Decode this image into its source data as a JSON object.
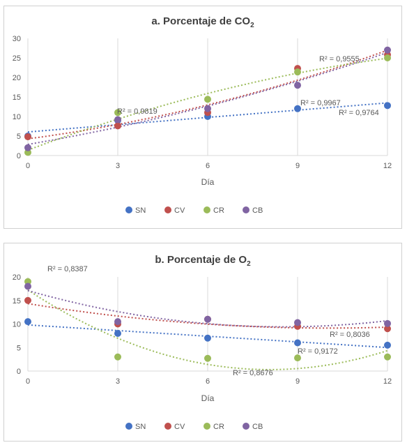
{
  "chart_data": [
    {
      "id": "a",
      "type": "scatter",
      "title_main": "a. Porcentaje de CO",
      "title_sub": "2",
      "xlabel": "Día",
      "ylabel": "",
      "x": [
        0,
        3,
        6,
        9,
        12
      ],
      "x_ticks": [
        "0",
        "3",
        "6",
        "9",
        "12"
      ],
      "y_ticks": [
        "0",
        "5",
        "10",
        "15",
        "20",
        "25",
        "30"
      ],
      "ylim": [
        0,
        30
      ],
      "grid": "vertical",
      "legend_position": "bottom",
      "series": [
        {
          "name": "SN",
          "color": "#4472C4",
          "values": [
            5,
            9,
            10,
            12,
            12.8
          ]
        },
        {
          "name": "CV",
          "color": "#C0504D",
          "values": [
            4.8,
            7.6,
            11,
            22.3,
            25.8
          ]
        },
        {
          "name": "CR",
          "color": "#9BBB59",
          "values": [
            0.8,
            11,
            14.4,
            21.4,
            25
          ]
        },
        {
          "name": "CB",
          "color": "#8064A2",
          "values": [
            2,
            9.2,
            12,
            18,
            27
          ]
        }
      ],
      "annotations": [
        "R² = 0,9555",
        "R² = 0,9819",
        "R² = 0,9967",
        "R² = 0,9764"
      ]
    },
    {
      "id": "b",
      "type": "scatter",
      "title_main": "b. Porcentaje de O",
      "title_sub": "2",
      "xlabel": "Día",
      "ylabel": "",
      "x": [
        0,
        3,
        6,
        9,
        12
      ],
      "x_ticks": [
        "0",
        "3",
        "6",
        "9",
        "12"
      ],
      "y_ticks": [
        "0",
        "5",
        "10",
        "15",
        "20"
      ],
      "ylim": [
        0,
        20
      ],
      "grid": "vertical",
      "legend_position": "bottom",
      "series": [
        {
          "name": "SN",
          "color": "#4472C4",
          "values": [
            10.5,
            8,
            7,
            6,
            5.5
          ]
        },
        {
          "name": "CV",
          "color": "#C0504D",
          "values": [
            15,
            10,
            11,
            9.5,
            9
          ]
        },
        {
          "name": "CR",
          "color": "#9BBB59",
          "values": [
            19,
            3,
            2.7,
            2.8,
            3
          ]
        },
        {
          "name": "CB",
          "color": "#8064A2",
          "values": [
            18,
            10.5,
            11,
            10.3,
            10.1
          ]
        }
      ],
      "annotations": [
        "R² = 0,8387",
        "R² = 0,8036",
        "R² = 0,9172",
        "R² = 0,8676"
      ]
    }
  ]
}
